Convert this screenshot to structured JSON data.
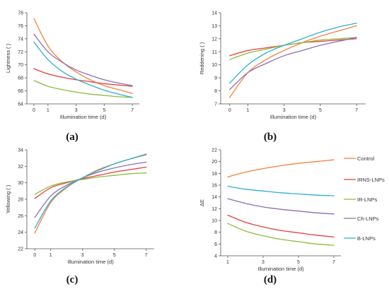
{
  "panel_letters": [
    "(a)",
    "(b)",
    "(c)",
    "(d)"
  ],
  "legend": {
    "items": [
      {
        "label": "Control",
        "color": "#F4813A"
      },
      {
        "label": "IRNS-LNPs",
        "color": "#E8413D"
      },
      {
        "label": "IR-LNPs",
        "color": "#8DBB3B"
      },
      {
        "label": "Ch-LNPs",
        "color": "#8A70B0"
      },
      {
        "label": "B-LNPs",
        "color": "#2DB0D2"
      }
    ]
  },
  "chart_data": [
    {
      "type": "line",
      "panel": "(a)",
      "xlabel": "Illumination time (d)",
      "ylabel": "Lightness ( )",
      "xticks": [
        0,
        1,
        3,
        5,
        7
      ],
      "yticks": [
        64,
        66,
        68,
        70,
        72,
        74,
        76,
        78
      ],
      "ylim": [
        64,
        78
      ],
      "x": [
        0,
        1,
        2,
        3,
        4,
        5,
        6,
        7
      ],
      "series": [
        {
          "name": "Control",
          "color": "#F4813A",
          "values": [
            77.1,
            72.9,
            70.5,
            68.9,
            67.7,
            66.8,
            66.2,
            65.6
          ]
        },
        {
          "name": "IRNS-LNPs",
          "color": "#E8413D",
          "values": [
            69.4,
            68.6,
            68.1,
            67.7,
            67.4,
            67.1,
            66.9,
            66.7
          ]
        },
        {
          "name": "IR-LNPs",
          "color": "#8DBB3B",
          "values": [
            67.6,
            66.7,
            66.2,
            65.8,
            65.5,
            65.3,
            65.1,
            65.0
          ]
        },
        {
          "name": "Ch-LNPs",
          "color": "#8A70B0",
          "values": [
            74.7,
            72.0,
            70.4,
            69.2,
            68.4,
            67.7,
            67.2,
            66.8
          ]
        },
        {
          "name": "B-LNPs",
          "color": "#2DB0D2",
          "values": [
            73.5,
            70.8,
            69.0,
            67.8,
            66.9,
            66.1,
            65.5,
            65.0
          ]
        }
      ]
    },
    {
      "type": "line",
      "panel": "(b)",
      "xlabel": "Illumination time (d)",
      "ylabel": "Reddening ( )",
      "xticks": [
        0,
        1,
        3,
        5,
        7
      ],
      "yticks": [
        7,
        8,
        9,
        10,
        11,
        12,
        13,
        14
      ],
      "ylim": [
        7,
        14
      ],
      "x": [
        0,
        1,
        2,
        3,
        4,
        5,
        6,
        7
      ],
      "series": [
        {
          "name": "Control",
          "color": "#F4813A",
          "values": [
            7.5,
            9.4,
            10.4,
            11.1,
            11.7,
            12.2,
            12.6,
            13.0
          ]
        },
        {
          "name": "IRNS-LNPs",
          "color": "#E8413D",
          "values": [
            10.7,
            11.1,
            11.3,
            11.5,
            11.7,
            11.8,
            11.9,
            12.0
          ]
        },
        {
          "name": "IR-LNPs",
          "color": "#8DBB3B",
          "values": [
            10.4,
            10.9,
            11.2,
            11.5,
            11.7,
            11.9,
            12.0,
            12.1
          ]
        },
        {
          "name": "Ch-LNPs",
          "color": "#8A70B0",
          "values": [
            8.1,
            9.4,
            10.1,
            10.7,
            11.1,
            11.5,
            11.8,
            12.1
          ]
        },
        {
          "name": "B-LNPs",
          "color": "#2DB0D2",
          "values": [
            8.6,
            10.0,
            10.9,
            11.5,
            12.0,
            12.5,
            12.9,
            13.2
          ]
        }
      ]
    },
    {
      "type": "line",
      "panel": "(c)",
      "xlabel": "Illumination time (d)",
      "ylabel": "Yellowing ( )",
      "xticks": [
        0,
        1,
        3,
        5,
        7
      ],
      "yticks": [
        22,
        24,
        26,
        28,
        30,
        32,
        34
      ],
      "ylim": [
        22,
        34
      ],
      "x": [
        0,
        1,
        2,
        3,
        4,
        5,
        6,
        7
      ],
      "series": [
        {
          "name": "Control",
          "color": "#F4813A",
          "values": [
            23.9,
            27.6,
            29.4,
            30.6,
            31.6,
            32.3,
            32.9,
            33.5
          ]
        },
        {
          "name": "IRNS-LNPs",
          "color": "#E8413D",
          "values": [
            28.1,
            29.4,
            30.0,
            30.5,
            30.9,
            31.3,
            31.6,
            31.9
          ]
        },
        {
          "name": "IR-LNPs",
          "color": "#8DBB3B",
          "values": [
            28.6,
            29.6,
            30.1,
            30.4,
            30.7,
            30.9,
            31.1,
            31.2
          ]
        },
        {
          "name": "Ch-LNPs",
          "color": "#8A70B0",
          "values": [
            25.8,
            28.4,
            29.7,
            30.6,
            31.3,
            31.8,
            32.2,
            32.5
          ]
        },
        {
          "name": "B-LNPs",
          "color": "#2DB0D2",
          "values": [
            24.5,
            27.8,
            29.5,
            30.6,
            31.5,
            32.3,
            32.9,
            33.4
          ]
        }
      ]
    },
    {
      "type": "line",
      "panel": "(d)",
      "xlabel": "Illumination time (d)",
      "ylabel": "ΔE",
      "xticks": [
        1,
        3,
        5,
        7
      ],
      "yticks": [
        4,
        6,
        8,
        10,
        12,
        14,
        16,
        18,
        20,
        22
      ],
      "ylim": [
        4,
        22
      ],
      "x": [
        1,
        2,
        3,
        4,
        5,
        6,
        7
      ],
      "series": [
        {
          "name": "Control",
          "color": "#F4813A",
          "values": [
            17.4,
            18.2,
            18.8,
            19.3,
            19.7,
            20.0,
            20.3
          ]
        },
        {
          "name": "IRNS-LNPs",
          "color": "#E8413D",
          "values": [
            10.9,
            9.7,
            8.9,
            8.3,
            7.9,
            7.5,
            7.2
          ]
        },
        {
          "name": "IR-LNPs",
          "color": "#8DBB3B",
          "values": [
            9.5,
            8.2,
            7.4,
            6.8,
            6.4,
            6.0,
            5.8
          ]
        },
        {
          "name": "Ch-LNPs",
          "color": "#8A70B0",
          "values": [
            13.7,
            12.9,
            12.3,
            11.9,
            11.6,
            11.3,
            11.1
          ]
        },
        {
          "name": "B-LNPs",
          "color": "#2DB0D2",
          "values": [
            15.8,
            15.3,
            15.0,
            14.7,
            14.5,
            14.3,
            14.2
          ]
        }
      ]
    }
  ]
}
